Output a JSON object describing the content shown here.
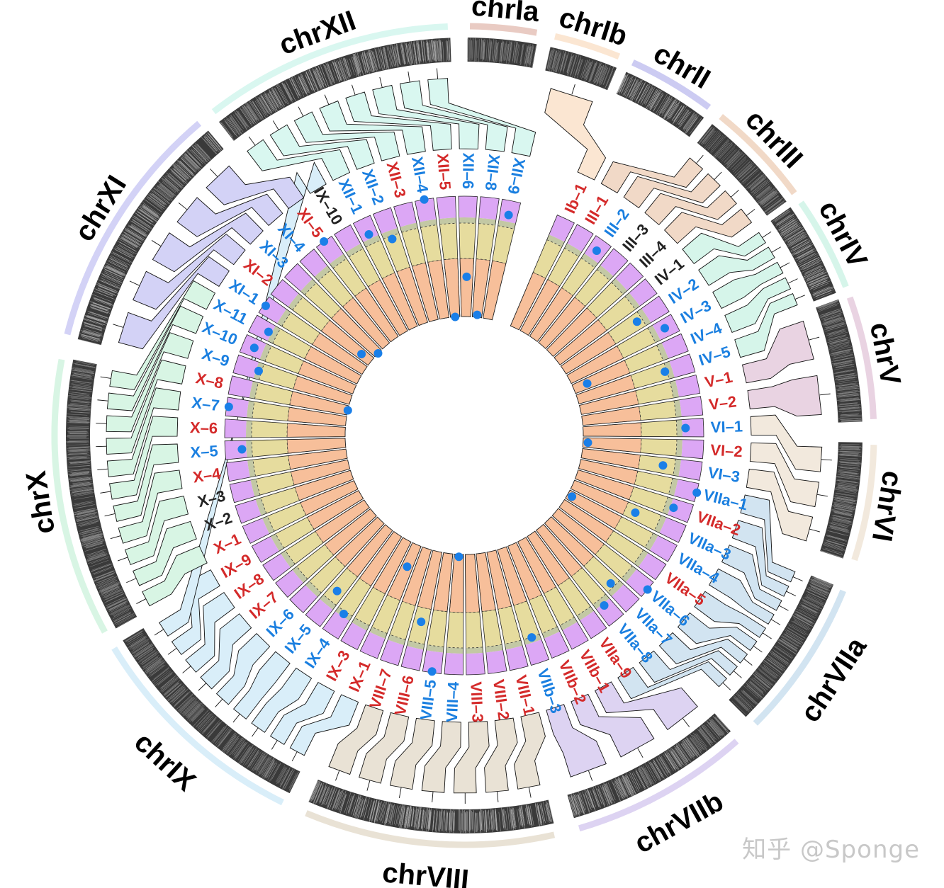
{
  "chromosomes": [
    {
      "name": "chrIa",
      "span": [
        0.5,
        10.5
      ],
      "color": "#e9cbc3"
    },
    {
      "name": "chrIb",
      "span": [
        12.5,
        22.5
      ],
      "color": "#fbe6d2"
    },
    {
      "name": "chrII",
      "span": [
        24,
        37
      ],
      "color": "#cccbf2"
    },
    {
      "name": "chrIII",
      "span": [
        38.5,
        54
      ],
      "color": "#f1d9c7"
    },
    {
      "name": "chrIV",
      "span": [
        55,
        69
      ],
      "color": "#d6f5ea"
    },
    {
      "name": "chrV",
      "span": [
        70,
        88
      ],
      "color": "#e9d3e2"
    },
    {
      "name": "chrVI",
      "span": [
        91,
        108
      ],
      "color": "#f2e9dd"
    },
    {
      "name": "chrVIIa",
      "span": [
        112,
        135
      ],
      "color": "#d2e4f1"
    },
    {
      "name": "chrVIIb",
      "span": [
        138,
        164
      ],
      "color": "#ddd3f2"
    },
    {
      "name": "chrVIII",
      "span": [
        167,
        203
      ],
      "color": "#e9e2d5"
    },
    {
      "name": "chrIX",
      "span": [
        206,
        239
      ],
      "color": "#d9eef9"
    },
    {
      "name": "chrX",
      "span": [
        241,
        281
      ],
      "color": "#d8f5e4"
    },
    {
      "name": "chrXI",
      "span": [
        284,
        320
      ],
      "color": "#d3d2f6"
    },
    {
      "name": "chrXII",
      "span": [
        322,
        358
      ],
      "color": "#d9f7f0"
    }
  ],
  "ring_colors": {
    "inner": "#f7bf9a",
    "middle": "#e6dc9e",
    "band": "#c3c8a4",
    "outer": "#dca7f5",
    "dot": "#1a7fe8"
  },
  "label_colors": {
    "r": "#d42a2a",
    "b": "#1a7fe0",
    "k": "#222222"
  },
  "segments": [
    {
      "label": "Ib–1",
      "c": "r"
    },
    {
      "label": "III–1",
      "c": "r"
    },
    {
      "label": "III–2",
      "c": "b",
      "dot": 0.9
    },
    {
      "label": "III–3",
      "c": "k"
    },
    {
      "label": "III–4",
      "c": "k"
    },
    {
      "label": "IV–1",
      "c": "k"
    },
    {
      "label": "IV–2",
      "c": "b",
      "dot": 0.73
    },
    {
      "label": "IV–3",
      "c": "b",
      "dot": 0.9
    },
    {
      "label": "IV–4",
      "c": "b",
      "dot": 0.12
    },
    {
      "label": "IV–5",
      "c": "b",
      "dot": 0.76
    },
    {
      "label": "V–1",
      "c": "r"
    },
    {
      "label": "V–2",
      "c": "r"
    },
    {
      "label": "VI–1",
      "c": "b",
      "dot": 0.85
    },
    {
      "label": "VI–2",
      "c": "r",
      "dot": 0.04
    },
    {
      "label": "VI–3",
      "c": "b",
      "dot": 0.68
    },
    {
      "label": "VIIa–1",
      "c": "b",
      "dot": 1.0
    },
    {
      "label": "VIIa–2",
      "c": "r",
      "dot": 0.85
    },
    {
      "label": "VIIa–3",
      "c": "b",
      "dot": 0.57
    },
    {
      "label": "VIIa–4",
      "c": "b",
      "dot": 0.04
    },
    {
      "label": "VIIa–5",
      "c": "r"
    },
    {
      "label": "VIIa–6",
      "c": "b",
      "dot": 1.0
    },
    {
      "label": "VIIa–7",
      "c": "b",
      "dot": 0.74
    },
    {
      "label": "VIIa–8",
      "c": "b",
      "dot": 0.84
    },
    {
      "label": "VIIa–9",
      "c": "r"
    },
    {
      "label": "VIIb–1",
      "c": "r"
    },
    {
      "label": "VIIb–2",
      "c": "r"
    },
    {
      "label": "VIIb–3",
      "c": "b",
      "dot": 0.78
    },
    {
      "label": "VIII–1",
      "c": "r"
    },
    {
      "label": "VIII–2",
      "c": "r"
    },
    {
      "label": "VIII–3",
      "c": "r"
    },
    {
      "label": "VIII–4",
      "c": "b",
      "dot": 0.02
    },
    {
      "label": "VIII–5",
      "c": "b",
      "dot": 0.99
    },
    {
      "label": "VIII–6",
      "c": "r",
      "dot": 0.6
    },
    {
      "label": "VIII–7",
      "c": "r"
    },
    {
      "label": "IX–1",
      "c": "r",
      "dot": 0.2
    },
    {
      "label": "IX–3",
      "c": "r"
    },
    {
      "label": "IX–4",
      "c": "b",
      "dot": 0.8
    },
    {
      "label": "IX–5",
      "c": "b",
      "dot": 0.68
    },
    {
      "label": "IX–6",
      "c": "b"
    },
    {
      "label": "IX–7",
      "c": "r"
    },
    {
      "label": "IX–8",
      "c": "r"
    },
    {
      "label": "IX–9",
      "c": "r"
    },
    {
      "label": "X–1",
      "c": "r"
    },
    {
      "label": "X–2",
      "c": "k"
    },
    {
      "label": "X–3",
      "c": "k"
    },
    {
      "label": "X–4",
      "c": "r"
    },
    {
      "label": "X–5",
      "c": "b",
      "dot": 0.86
    },
    {
      "label": "X–6",
      "c": "r"
    },
    {
      "label": "X–7",
      "c": "b",
      "dot": 0.98
    },
    {
      "label": "X–8",
      "c": "r",
      "dot": 0.0
    },
    {
      "label": "X–9",
      "c": "b",
      "dot": 0.8
    },
    {
      "label": "X–10",
      "c": "b",
      "dot": 0.9
    },
    {
      "label": "X–11",
      "c": "b",
      "dot": 0.85
    },
    {
      "label": "XI–1",
      "c": "b",
      "dot": 0.98
    },
    {
      "label": "XI–2",
      "c": "r",
      "dot": 0.1
    },
    {
      "label": "XI–3",
      "c": "b",
      "dot": 0.0
    },
    {
      "label": "XI–4",
      "c": "b"
    },
    {
      "label": "XI–5",
      "c": "r",
      "dot": 1.0
    },
    {
      "label": "IX–10",
      "c": "k"
    },
    {
      "label": "XII–1",
      "c": "b",
      "dot": 0.86
    },
    {
      "label": "XII–2",
      "c": "b",
      "dot": 0.75
    },
    {
      "label": "XII–3",
      "c": "r"
    },
    {
      "label": "XII–4",
      "c": "b",
      "dot": 1.0
    },
    {
      "label": "XII–5",
      "c": "r",
      "dot": 0.0
    },
    {
      "label": "XII–6",
      "c": "b",
      "dot": 0.33
    },
    {
      "label": "XII–8",
      "c": "b",
      "dot": 0.02
    },
    {
      "label": "XII–9",
      "c": "b",
      "dot": 0.88
    }
  ],
  "watermark": "知乎 @Sponge"
}
